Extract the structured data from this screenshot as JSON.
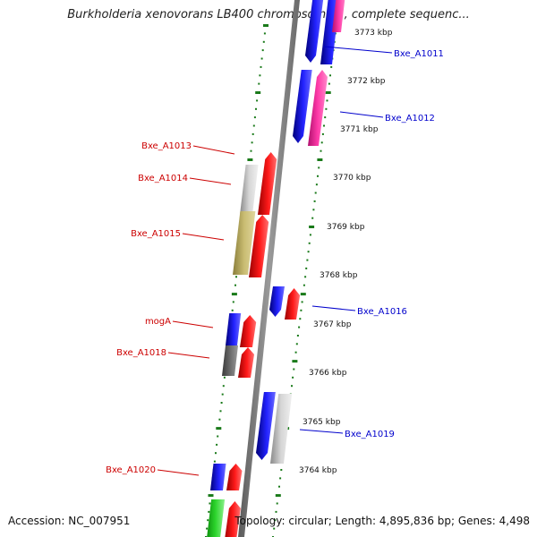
{
  "title": "Burkholderia xenovorans LB400 chromosome 1, complete sequenc...",
  "footer": {
    "accession": "Accession: NC_007951",
    "topology": "Topology: circular; Length: 4,895,836 bp; Genes: 4,498"
  },
  "colors": {
    "backbone": "#808080",
    "tick": "#1a7a1a",
    "right_label": "#0000cc",
    "left_label": "#cc0000"
  },
  "ruler": [
    "3773 kbp",
    "3772 kbp",
    "3771 kbp",
    "3770 kbp",
    "3769 kbp",
    "3768 kbp",
    "3767 kbp",
    "3766 kbp",
    "3765 kbp",
    "3764 kbp"
  ],
  "labels_right": [
    "Bxe_A1011",
    "Bxe_A1012",
    "Bxe_A1016",
    "Bxe_A1019"
  ],
  "labels_left": [
    "Bxe_A1013",
    "Bxe_A1014",
    "Bxe_A1015",
    "mogA",
    "Bxe_A1018",
    "Bxe_A1020"
  ]
}
